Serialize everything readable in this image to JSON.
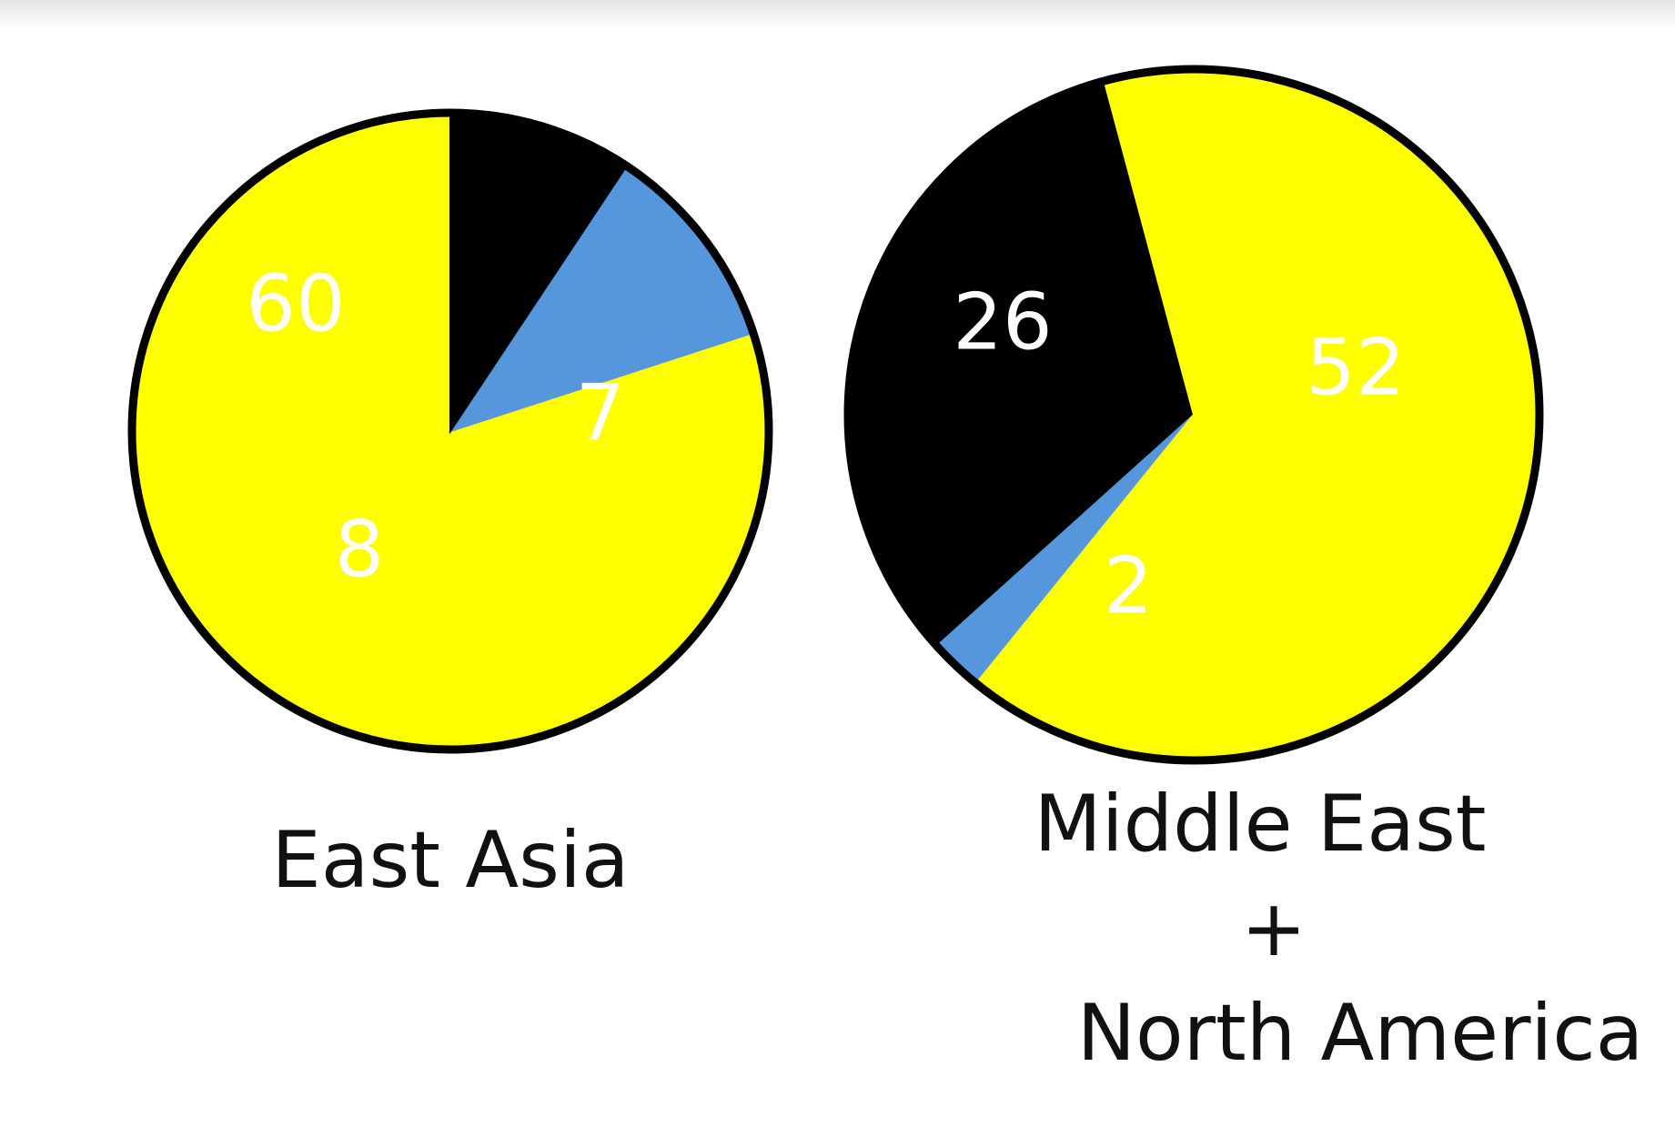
{
  "chart_data": [
    {
      "type": "pie",
      "title": "East Asia",
      "slices": [
        {
          "label": "60",
          "value": 60,
          "color": "#ffff00"
        },
        {
          "label": "8",
          "value": 8,
          "color": "#5596dc"
        },
        {
          "label": "7",
          "value": 7,
          "color": "#000000"
        }
      ]
    },
    {
      "type": "pie",
      "title": "Middle East + North America",
      "title_lines": [
        "Middle East",
        "+",
        "North America"
      ],
      "slices": [
        {
          "label": "26",
          "value": 26,
          "color": "#000000"
        },
        {
          "label": "2",
          "value": 2,
          "color": "#5596dc"
        },
        {
          "label": "52",
          "value": 52,
          "color": "#ffff00"
        }
      ]
    }
  ]
}
